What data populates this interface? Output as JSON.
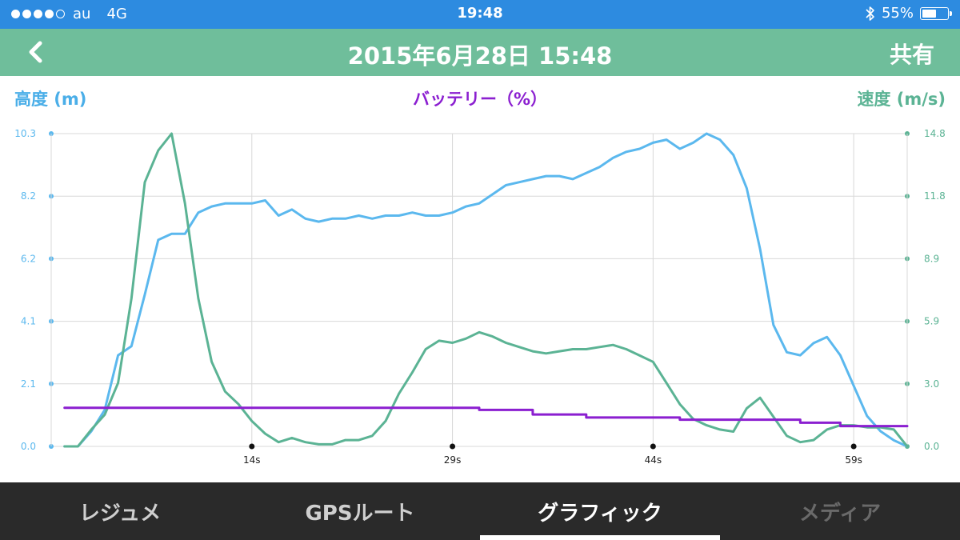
{
  "status_bar": {
    "carrier": "au",
    "network": "4G",
    "time": "19:48",
    "battery_text": "55%",
    "battery_level": 0.55,
    "bluetooth_icon": "bluetooth-icon"
  },
  "header": {
    "title": "2015年6月28日 15:48",
    "share_label": "共有",
    "back_icon": "chevron-left-icon"
  },
  "axis_titles": {
    "altitude": "高度 (m)",
    "battery": "バッテリー（%）",
    "speed": "速度 (m/s)"
  },
  "tabs": [
    {
      "label": "レジュメ",
      "state": "normal"
    },
    {
      "label": "GPSルート",
      "state": "normal"
    },
    {
      "label": "グラフィック",
      "state": "active"
    },
    {
      "label": "メディア",
      "state": "disabled"
    }
  ],
  "colors": {
    "altitude": "#5bb8ee",
    "speed": "#5bb394",
    "battery": "#8b1fd0",
    "header": "#6fbe9b",
    "status_bar": "#2d8be0"
  },
  "chart_data": {
    "type": "line",
    "x_ticks": [
      "14s",
      "29s",
      "44s",
      "59s"
    ],
    "x_tick_values": [
      14,
      29,
      44,
      59
    ],
    "xlim": [
      -1,
      63
    ],
    "y_left_ticks": [
      "0.0",
      "2.1",
      "4.1",
      "6.2",
      "8.2",
      "10.3"
    ],
    "ylim_left": [
      0,
      10.3
    ],
    "y_right_ticks": [
      "0.0",
      "3.0",
      "5.9",
      "8.9",
      "11.8",
      "14.8"
    ],
    "ylim_right": [
      0,
      14.8
    ],
    "grid": true,
    "series": [
      {
        "name": "高度 (m)",
        "axis": "left",
        "color": "#5bb8ee",
        "x": [
          0,
          1,
          2,
          3,
          4,
          5,
          6,
          7,
          8,
          9,
          10,
          11,
          12,
          13,
          14,
          15,
          16,
          17,
          18,
          19,
          20,
          21,
          22,
          23,
          24,
          25,
          26,
          27,
          28,
          29,
          30,
          31,
          32,
          33,
          34,
          35,
          36,
          37,
          38,
          39,
          40,
          41,
          42,
          43,
          44,
          45,
          46,
          47,
          48,
          49,
          50,
          51,
          52,
          53,
          54,
          55,
          56,
          57,
          58,
          59,
          60,
          61,
          62,
          63
        ],
        "y": [
          0.0,
          0.0,
          0.5,
          1.2,
          3.0,
          3.3,
          5.0,
          6.8,
          7.0,
          7.0,
          7.7,
          7.9,
          8.0,
          8.0,
          8.0,
          8.1,
          7.6,
          7.8,
          7.5,
          7.4,
          7.5,
          7.5,
          7.6,
          7.5,
          7.6,
          7.6,
          7.7,
          7.6,
          7.6,
          7.7,
          7.9,
          8.0,
          8.3,
          8.6,
          8.7,
          8.8,
          8.9,
          8.9,
          8.8,
          9.0,
          9.2,
          9.5,
          9.7,
          9.8,
          10.0,
          10.1,
          9.8,
          10.0,
          10.3,
          10.1,
          9.6,
          8.5,
          6.5,
          4.0,
          3.1,
          3.0,
          3.4,
          3.6,
          3.0,
          2.0,
          1.0,
          0.5,
          0.2,
          0.0
        ]
      },
      {
        "name": "速度 (m/s)",
        "axis": "right",
        "color": "#5bb394",
        "x": [
          0,
          1,
          2,
          3,
          4,
          5,
          6,
          7,
          8,
          9,
          10,
          11,
          12,
          13,
          14,
          15,
          16,
          17,
          18,
          19,
          20,
          21,
          22,
          23,
          24,
          25,
          26,
          27,
          28,
          29,
          30,
          31,
          32,
          33,
          34,
          35,
          36,
          37,
          38,
          39,
          40,
          41,
          42,
          43,
          44,
          45,
          46,
          47,
          48,
          49,
          50,
          51,
          52,
          53,
          54,
          55,
          56,
          57,
          58,
          59,
          60,
          61,
          62,
          63
        ],
        "y": [
          0.0,
          0.0,
          0.8,
          1.5,
          3.0,
          7.0,
          12.5,
          14.0,
          14.8,
          11.5,
          7.0,
          4.0,
          2.6,
          2.0,
          1.2,
          0.6,
          0.2,
          0.4,
          0.2,
          0.1,
          0.1,
          0.3,
          0.3,
          0.5,
          1.2,
          2.5,
          3.5,
          4.6,
          5.0,
          4.9,
          5.1,
          5.4,
          5.2,
          4.9,
          4.7,
          4.5,
          4.4,
          4.5,
          4.6,
          4.6,
          4.7,
          4.8,
          4.6,
          4.3,
          4.0,
          3.0,
          2.0,
          1.3,
          1.0,
          0.8,
          0.7,
          1.8,
          2.3,
          1.4,
          0.5,
          0.2,
          0.3,
          0.8,
          1.0,
          1.0,
          0.9,
          0.9,
          0.8,
          0.0
        ]
      },
      {
        "name": "バッテリー（%）",
        "axis": "left",
        "color": "#8b1fd0",
        "x": [
          0,
          31,
          31,
          35,
          35,
          39,
          39,
          46,
          46,
          55,
          55,
          58,
          58,
          63
        ],
        "y": [
          1.27,
          1.27,
          1.2,
          1.2,
          1.05,
          1.05,
          0.95,
          0.95,
          0.88,
          0.88,
          0.78,
          0.78,
          0.67,
          0.67
        ]
      }
    ]
  }
}
